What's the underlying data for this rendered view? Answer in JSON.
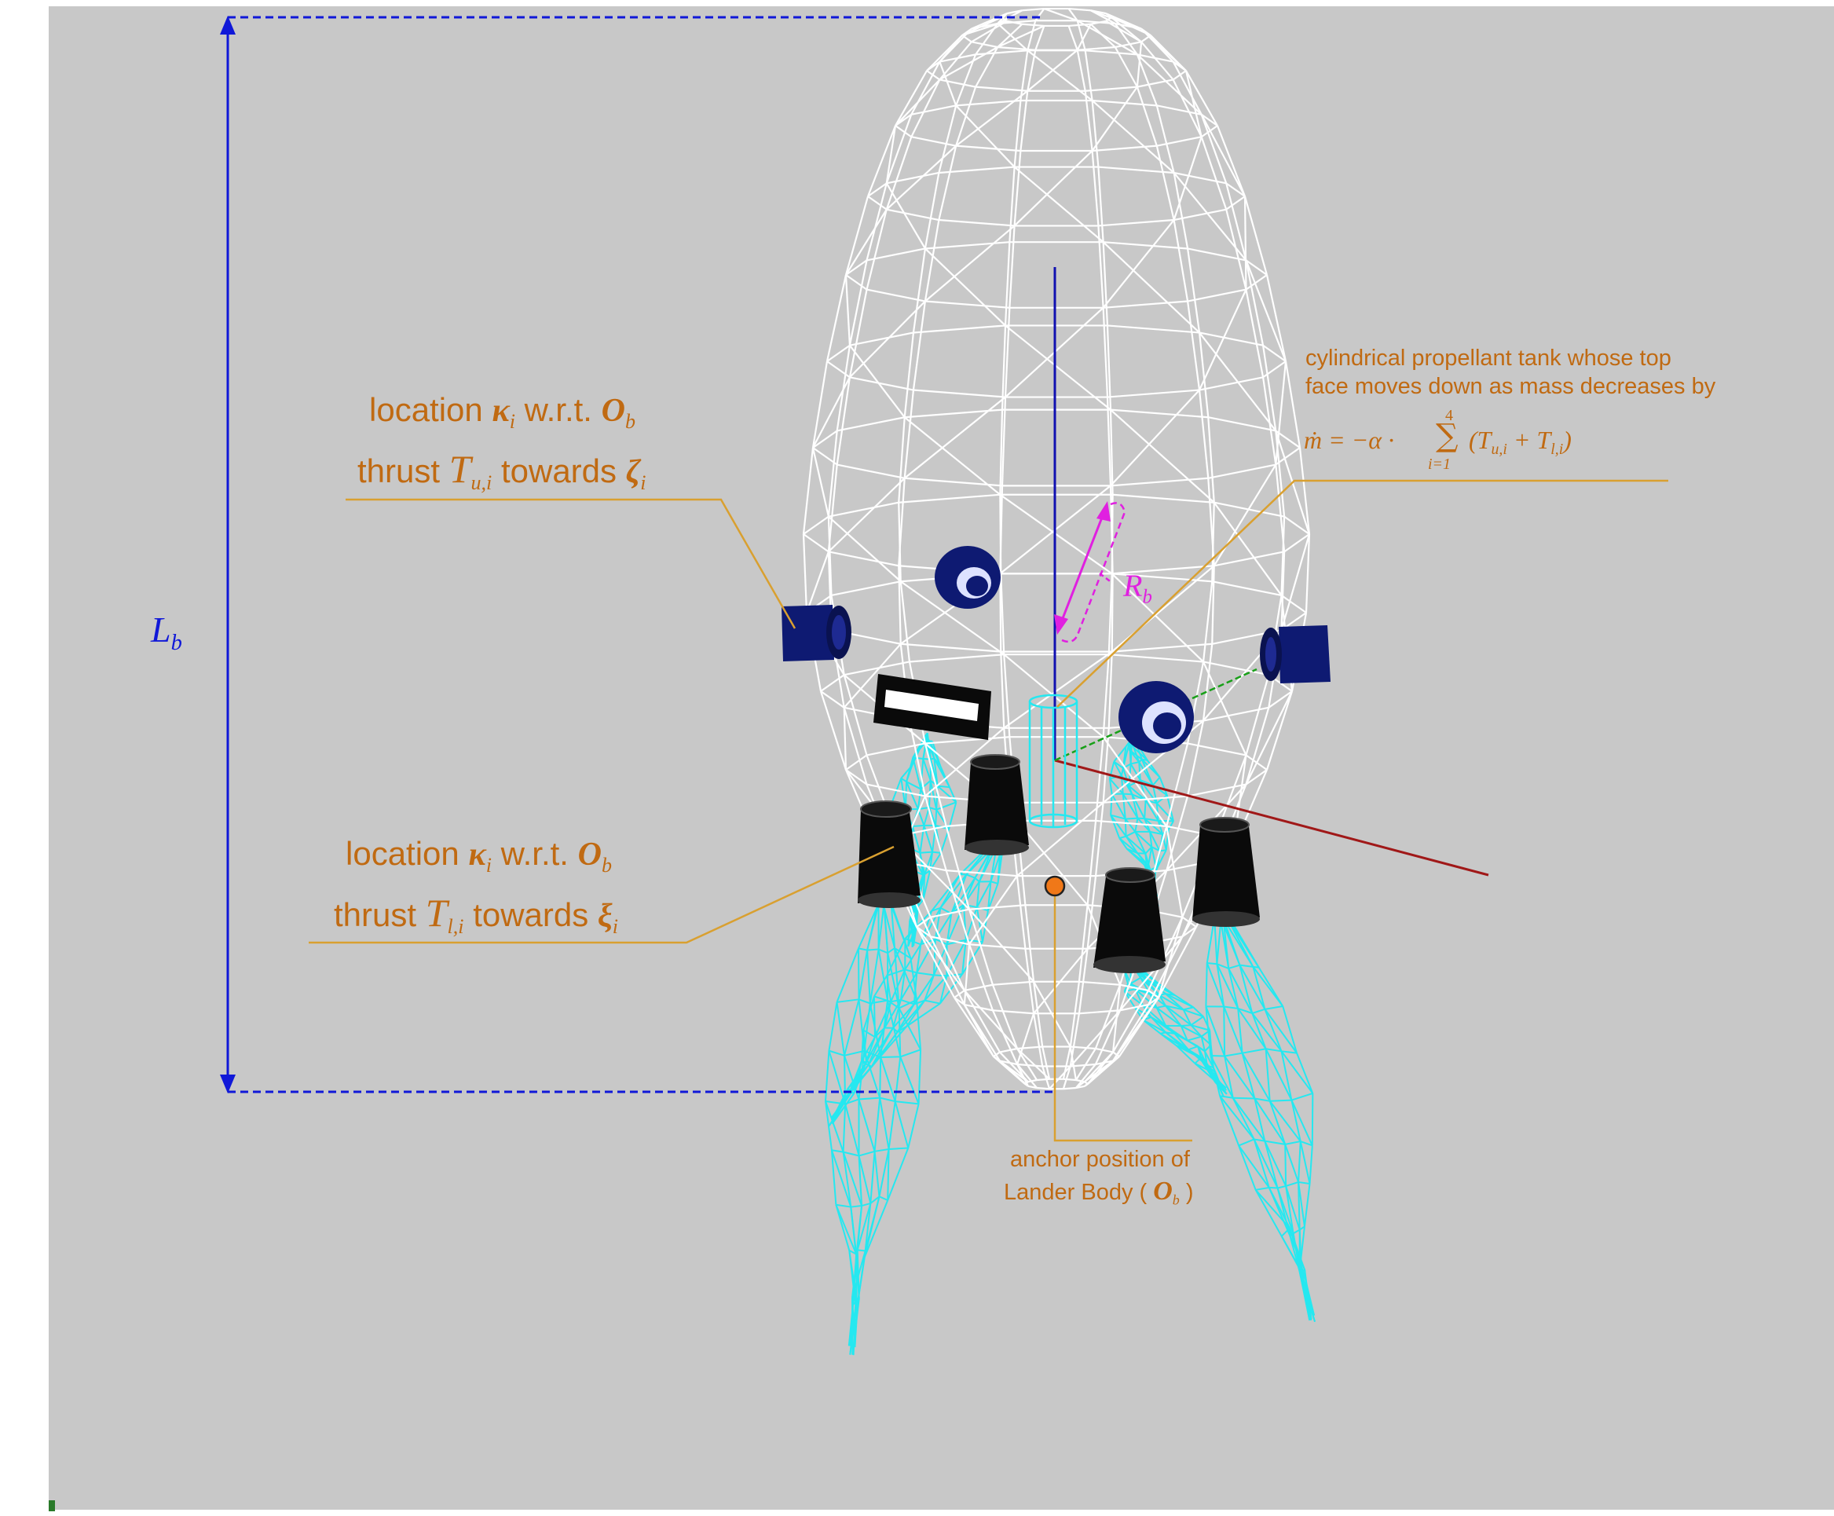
{
  "labels": {
    "upper_thruster": {
      "line1_a": "location",
      "kappa": "κ",
      "i": "i",
      "wrt": "w.r.t.",
      "O": "O",
      "b": "b",
      "line2_a": "thrust",
      "T": "T",
      "sub": "u,i",
      "towards": "towards",
      "dir": "ζ",
      "dir_sub": "i"
    },
    "lower_thruster": {
      "line1_a": "location",
      "kappa": "κ",
      "i": "i",
      "wrt": "w.r.t.",
      "O": "O",
      "b": "b",
      "line2_a": "thrust",
      "T": "T",
      "sub": "l,i",
      "towards": "towards",
      "dir": "ξ",
      "dir_sub": "i"
    },
    "tank": {
      "line1": "cylindrical propellant tank whose top",
      "line2": "face moves down as mass decreases by",
      "formula_lhs": "ṁ = −α ·",
      "sum_top": "4",
      "sum_sym": "∑",
      "sum_bottom": "i=1",
      "formula_rhs_open": "(T",
      "formula_sub1": "u,i",
      "formula_plus": " + T",
      "formula_sub2": "l,i",
      "formula_close": ")"
    },
    "anchor": {
      "line1": "anchor position of",
      "line2_a": "Lander Body (",
      "O": "O",
      "b": "b",
      "line2_b": ")"
    },
    "length": {
      "L": "L",
      "b": "b"
    },
    "radius": {
      "R": "R",
      "b": "b"
    }
  },
  "colors": {
    "background": "#c8c8c8",
    "annotation": "#c06a12",
    "leader": "#d9a030",
    "dimension": "#1018d8",
    "radius": "#e020e0",
    "wireframe": "#ffffff",
    "plume": "#25e8f0",
    "thruster_blue": "#0e1a72",
    "thruster_black": "#0a0a0a",
    "axis_red": "#a01818",
    "axis_green": "#18a018",
    "anchor_dot": "#f07818"
  }
}
